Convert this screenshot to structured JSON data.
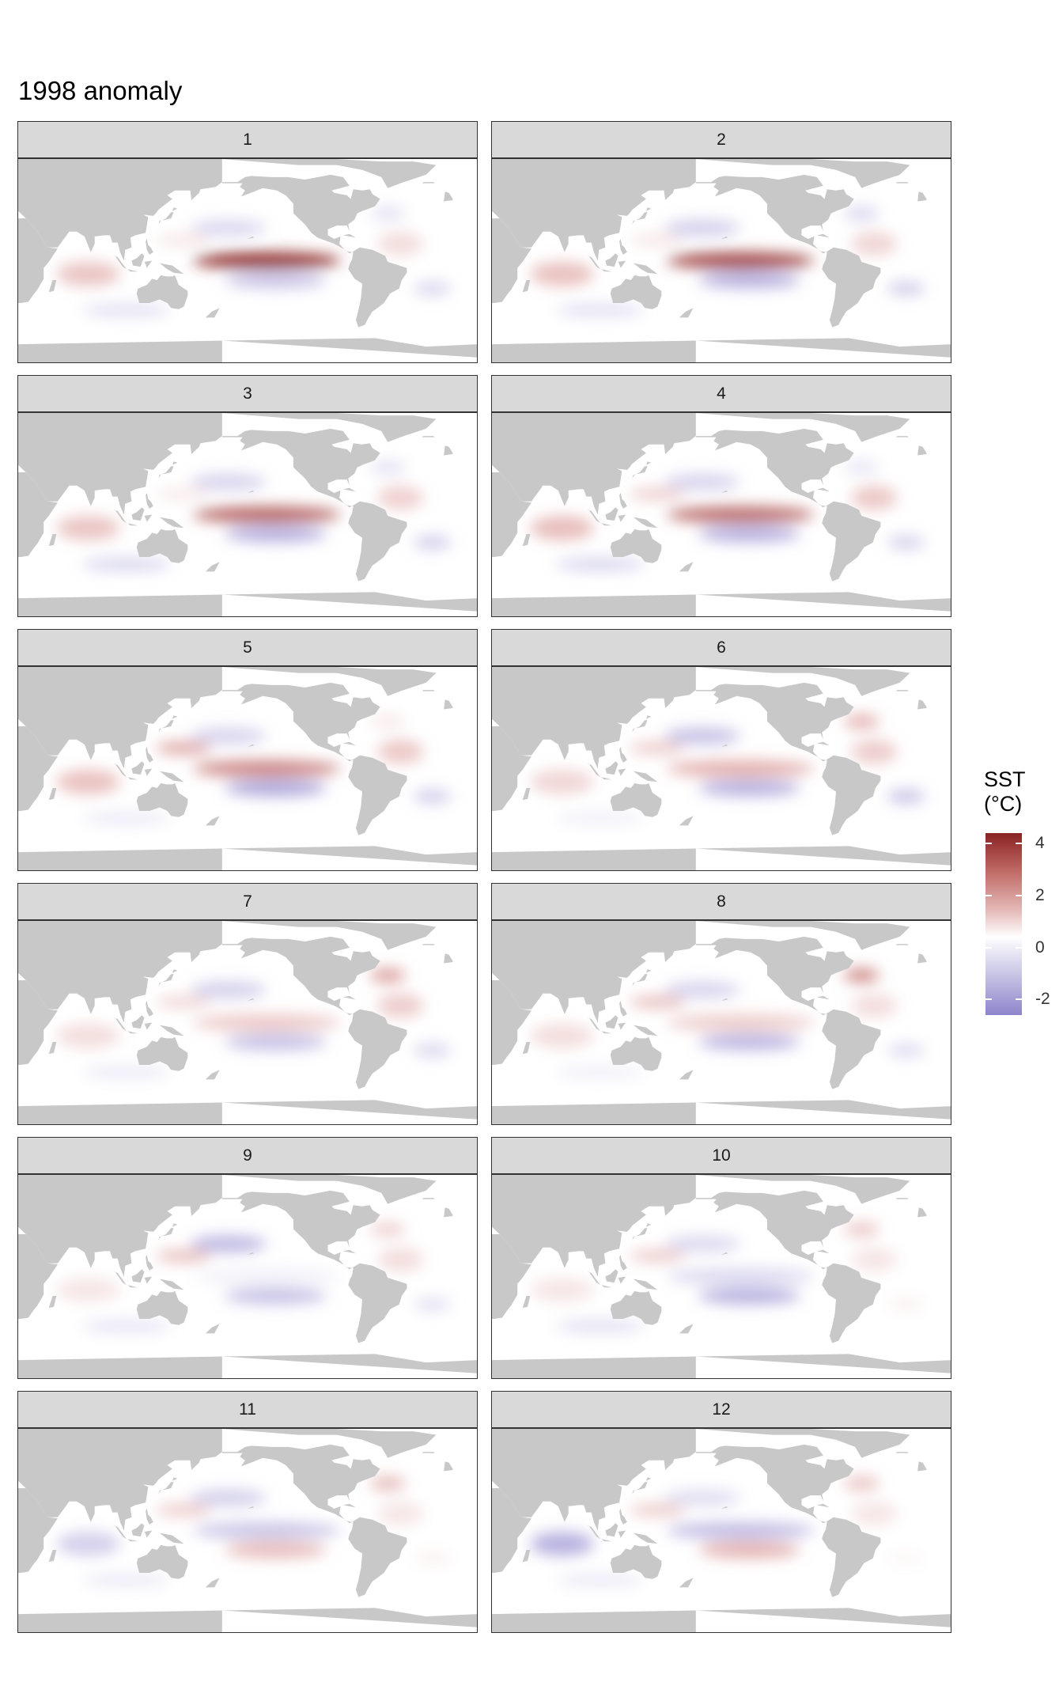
{
  "title": "1998 anomaly",
  "legend": {
    "title_line1": "SST",
    "title_line2": "(°C)",
    "ticks": [
      "4",
      "2",
      "0",
      "-2"
    ],
    "tick_values": [
      4,
      2,
      0,
      -2
    ],
    "range": [
      -2.6,
      4.4
    ]
  },
  "colors": {
    "land": "#c8c8c8",
    "ocean_neutral": "#ffffff",
    "strip": "#d9d9d9",
    "border": "#333333",
    "warm_max": "#8a2323",
    "cool_min": "#8e84cc"
  },
  "panels": [
    {
      "label": "1",
      "month": 1,
      "features": {
        "enso": 4.0,
        "spac": -1.2,
        "npac": -0.8,
        "nwpac": 0.6,
        "natl": 0.8,
        "natl_n": -0.6,
        "ind": 1.4,
        "satl": -0.8,
        "sind": -0.6
      }
    },
    {
      "label": "2",
      "month": 2,
      "features": {
        "enso": 3.6,
        "spac": -1.6,
        "npac": -1.0,
        "nwpac": 0.6,
        "natl": 1.0,
        "natl_n": -0.8,
        "ind": 1.5,
        "satl": -1.0,
        "sind": -0.6
      }
    },
    {
      "label": "3",
      "month": 3,
      "features": {
        "enso": 3.1,
        "spac": -1.6,
        "npac": -0.9,
        "nwpac": 0.5,
        "natl": 1.1,
        "natl_n": -0.6,
        "ind": 1.4,
        "satl": -1.0,
        "sind": -0.8
      }
    },
    {
      "label": "4",
      "month": 4,
      "features": {
        "enso": 3.0,
        "spac": -1.6,
        "npac": -0.9,
        "nwpac": 1.2,
        "natl": 1.3,
        "natl_n": -0.5,
        "ind": 1.6,
        "satl": -0.9,
        "sind": -0.8
      }
    },
    {
      "label": "5",
      "month": 5,
      "features": {
        "enso": 2.6,
        "spac": -1.8,
        "npac": -0.9,
        "nwpac": 2.2,
        "natl": 1.3,
        "natl_n": 0.5,
        "ind": 1.5,
        "satl": -1.0,
        "sind": -0.4
      }
    },
    {
      "label": "6",
      "month": 6,
      "features": {
        "enso": 1.9,
        "spac": -1.6,
        "npac": -1.3,
        "nwpac": 1.3,
        "natl": 1.2,
        "natl_n": 1.8,
        "ind": 1.0,
        "satl": -1.2,
        "sind": -0.3
      }
    },
    {
      "label": "7",
      "month": 7,
      "features": {
        "enso": 1.3,
        "spac": -1.3,
        "npac": -1.0,
        "nwpac": 1.0,
        "natl": 1.2,
        "natl_n": 2.2,
        "ind": 0.8,
        "satl": -0.8,
        "sind": -0.4
      }
    },
    {
      "label": "8",
      "month": 8,
      "features": {
        "enso": 1.2,
        "spac": -1.5,
        "npac": -0.9,
        "nwpac": 1.6,
        "natl": 0.8,
        "natl_n": 2.5,
        "ind": 0.8,
        "satl": -0.7,
        "sind": -0.3
      }
    },
    {
      "label": "9",
      "month": 9,
      "features": {
        "enso": -0.3,
        "spac": -1.3,
        "npac": -1.5,
        "nwpac": 1.6,
        "natl": 0.8,
        "natl_n": 1.1,
        "ind": 0.6,
        "satl": -0.6,
        "sind": -0.5
      }
    },
    {
      "label": "10",
      "month": 10,
      "features": {
        "enso": -0.8,
        "spac": -1.6,
        "npac": -0.8,
        "nwpac": 1.3,
        "natl": 0.6,
        "natl_n": 1.3,
        "ind": 0.6,
        "satl": 0.3,
        "sind": -0.6
      }
    },
    {
      "label": "11",
      "month": 11,
      "features": {
        "enso": -1.2,
        "spac": 1.6,
        "npac": -1.0,
        "nwpac": 1.3,
        "natl": 0.6,
        "natl_n": 1.6,
        "ind": -1.0,
        "satl": 0.3,
        "sind": -0.4
      }
    },
    {
      "label": "12",
      "month": 12,
      "features": {
        "enso": -1.4,
        "spac": 1.8,
        "npac": -0.7,
        "nwpac": 1.3,
        "natl": 0.6,
        "natl_n": 1.4,
        "ind": -1.6,
        "satl": 0.2,
        "sind": -0.4
      }
    }
  ]
}
